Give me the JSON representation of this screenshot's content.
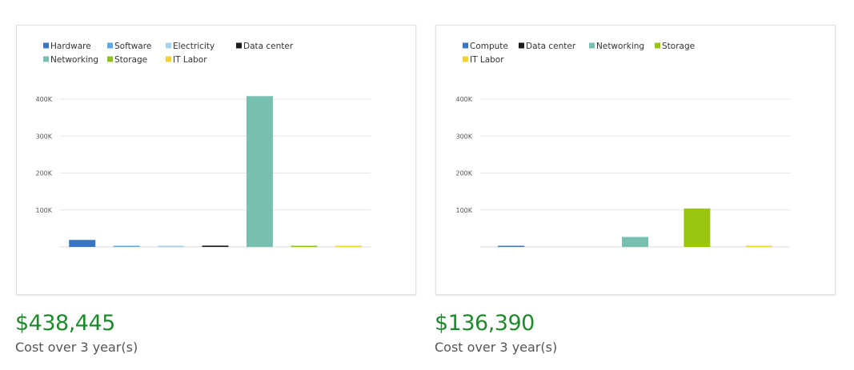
{
  "chart_data": [
    {
      "type": "bar",
      "categories": [
        "Hardware",
        "Software",
        "Electricity",
        "Data center",
        "Networking",
        "Storage",
        "IT Labor"
      ],
      "series": [
        {
          "name": "Hardware",
          "values": [
            19000,
            null,
            null,
            null,
            null,
            null,
            null
          ],
          "color": "#3a74c5"
        },
        {
          "name": "Software",
          "values": [
            null,
            2500,
            null,
            null,
            null,
            null,
            null
          ],
          "color": "#5ba8e6"
        },
        {
          "name": "Electricity",
          "values": [
            null,
            null,
            1000,
            null,
            null,
            null,
            null
          ],
          "color": "#a3d1ec"
        },
        {
          "name": "Data center",
          "values": [
            null,
            null,
            null,
            3500,
            null,
            null,
            null
          ],
          "color": "#1a1a1a"
        },
        {
          "name": "Networking",
          "values": [
            null,
            null,
            null,
            null,
            408000,
            null,
            null
          ],
          "color": "#76bfb1"
        },
        {
          "name": "Storage",
          "values": [
            null,
            null,
            null,
            null,
            null,
            1000,
            null
          ],
          "color": "#8fc01c"
        },
        {
          "name": "IT Labor",
          "values": [
            null,
            null,
            null,
            null,
            null,
            null,
            2500
          ],
          "color": "#f2d233"
        }
      ],
      "yticks": [
        "100K",
        "200K",
        "300K",
        "400K"
      ],
      "ytick_values": [
        100000,
        200000,
        300000,
        400000
      ],
      "ylim": [
        0,
        400000
      ],
      "grid": true,
      "legend_position": "top-left",
      "title": "",
      "xlabel": "",
      "ylabel": ""
    },
    {
      "type": "bar",
      "categories": [
        "Compute",
        "Data center",
        "Networking",
        "Storage",
        "IT Labor"
      ],
      "series": [
        {
          "name": "Compute",
          "values": [
            3000,
            null,
            null,
            null,
            null
          ],
          "color": "#3a74c5"
        },
        {
          "name": "Data center",
          "values": [
            null,
            0,
            null,
            null,
            null
          ],
          "color": "#1a1a1a"
        },
        {
          "name": "Networking",
          "values": [
            null,
            null,
            27000,
            null,
            null
          ],
          "color": "#76bfb1"
        },
        {
          "name": "Storage",
          "values": [
            null,
            null,
            null,
            104000,
            null
          ],
          "color": "#98c50f"
        },
        {
          "name": "IT Labor",
          "values": [
            null,
            null,
            null,
            null,
            2500
          ],
          "color": "#f2d233"
        }
      ],
      "yticks": [
        "100K",
        "200K",
        "300K",
        "400K"
      ],
      "ytick_values": [
        100000,
        200000,
        300000,
        400000
      ],
      "ylim": [
        0,
        400000
      ],
      "grid": true,
      "legend_position": "top-left",
      "title": "",
      "xlabel": "",
      "ylabel": ""
    }
  ],
  "summaries": [
    {
      "cost": "$438,445",
      "caption": "Cost over 3 year(s)"
    },
    {
      "cost": "$136,390",
      "caption": "Cost over 3 year(s)"
    }
  ]
}
